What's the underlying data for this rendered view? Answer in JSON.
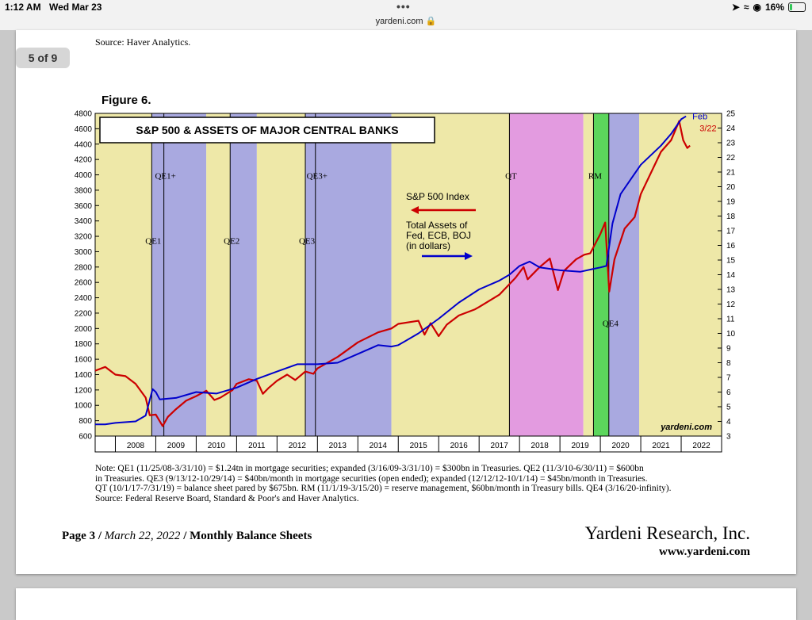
{
  "status_bar": {
    "time": "1:12 AM",
    "date": "Wed Mar 23",
    "url": "yardeni.com",
    "battery": "16%",
    "battery_level": 0.16
  },
  "viewer": {
    "page_counter": "5 of 9"
  },
  "document": {
    "source_top": "Source: Haver Analytics.",
    "figure_label": "Figure 6.",
    "notes": [
      "Note: QE1 (11/25/08-3/31/10) = $1.24tn in mortgage securities; expanded (3/16/09-3/31/10) = $300bn in Treasuries. QE2 (11/3/10-6/30/11) = $600bn",
      "in Treasuries. QE3 (9/13/12-10/29/14) = $40bn/month in mortgage securities (open ended); expanded (12/12/12-10/1/14) = $45bn/month in Treasuries.",
      "QT (10/1/17-7/31/19) = balance sheet pared by $675bn. RM (11/1/19-3/15/20) = reserve management, $60bn/month in Treasury bills. QE4 (3/16/20-infinity).",
      "Source: Federal Reserve Board, Standard & Poor's and Haver Analytics."
    ],
    "footer": {
      "page": "Page 3",
      "date": "March 22, 2022",
      "section": "Monthly Balance Sheets",
      "company": "Yardeni Research, Inc.",
      "website": "www.yardeni.com"
    }
  },
  "chart_data": {
    "type": "line",
    "title": "S&P 500 & ASSETS OF MAJOR CENTRAL BANKS",
    "watermark": "yardeni.com",
    "x_range": [
      2007.5,
      2023.0
    ],
    "x_tick_labels": [
      "2008",
      "2009",
      "2010",
      "2011",
      "2012",
      "2013",
      "2014",
      "2015",
      "2016",
      "2017",
      "2018",
      "2019",
      "2020",
      "2021",
      "2022"
    ],
    "y_left": {
      "range": [
        600,
        4800
      ],
      "ticks": [
        600,
        800,
        1000,
        1200,
        1400,
        1600,
        1800,
        2000,
        2200,
        2400,
        2600,
        2800,
        3000,
        3200,
        3400,
        3600,
        3800,
        4000,
        4200,
        4400,
        4600,
        4800
      ]
    },
    "y_right": {
      "range": [
        3,
        25
      ],
      "ticks": [
        3,
        4,
        5,
        6,
        7,
        8,
        9,
        10,
        11,
        12,
        13,
        14,
        15,
        16,
        17,
        18,
        19,
        20,
        21,
        22,
        23,
        24,
        25
      ]
    },
    "shaded_periods": [
      {
        "start": 2007.5,
        "end": 2008.9,
        "color": "#eee8a8"
      },
      {
        "start": 2008.9,
        "end": 2010.25,
        "color": "#a9a9e0"
      },
      {
        "start": 2010.25,
        "end": 2010.84,
        "color": "#eee8a8"
      },
      {
        "start": 2010.84,
        "end": 2011.5,
        "color": "#a9a9e0"
      },
      {
        "start": 2011.5,
        "end": 2012.7,
        "color": "#eee8a8"
      },
      {
        "start": 2012.7,
        "end": 2014.83,
        "color": "#a9a9e0"
      },
      {
        "start": 2014.83,
        "end": 2017.75,
        "color": "#eee8a8"
      },
      {
        "start": 2017.75,
        "end": 2019.58,
        "color": "#e39be0"
      },
      {
        "start": 2019.58,
        "end": 2019.83,
        "color": "#eee8a8"
      },
      {
        "start": 2019.83,
        "end": 2020.21,
        "color": "#5cd65c"
      },
      {
        "start": 2020.21,
        "end": 2020.96,
        "color": "#a9a9e0"
      },
      {
        "start": 2020.96,
        "end": 2023.0,
        "color": "#eee8a8"
      }
    ],
    "event_lines": [
      {
        "x": 2008.9,
        "label": "QE1",
        "label_y": 3100
      },
      {
        "x": 2009.2,
        "label": "QE1+",
        "label_y": 3950
      },
      {
        "x": 2010.84,
        "label": "QE2",
        "label_y": 3100
      },
      {
        "x": 2012.7,
        "label": "QE3",
        "label_y": 3100
      },
      {
        "x": 2012.95,
        "label": "QE3+",
        "label_y": 3950
      },
      {
        "x": 2017.75,
        "label": "QT",
        "label_y": 3950
      },
      {
        "x": 2019.83,
        "label": "RM",
        "label_y": 3950
      },
      {
        "x": 2020.21,
        "label": "QE4",
        "label_y": 2030
      }
    ],
    "series": [
      {
        "name": "S&P 500 Index",
        "axis": "left",
        "color": "#cc0000",
        "end_label": "3/22",
        "points": [
          [
            2007.5,
            1450
          ],
          [
            2007.75,
            1500
          ],
          [
            2008.0,
            1400
          ],
          [
            2008.25,
            1380
          ],
          [
            2008.5,
            1280
          ],
          [
            2008.75,
            1100
          ],
          [
            2008.85,
            870
          ],
          [
            2009.0,
            880
          ],
          [
            2009.17,
            730
          ],
          [
            2009.3,
            850
          ],
          [
            2009.5,
            950
          ],
          [
            2009.75,
            1060
          ],
          [
            2010.0,
            1120
          ],
          [
            2010.25,
            1190
          ],
          [
            2010.45,
            1070
          ],
          [
            2010.6,
            1100
          ],
          [
            2010.9,
            1200
          ],
          [
            2011.0,
            1280
          ],
          [
            2011.3,
            1340
          ],
          [
            2011.5,
            1320
          ],
          [
            2011.65,
            1150
          ],
          [
            2011.8,
            1230
          ],
          [
            2012.0,
            1320
          ],
          [
            2012.25,
            1400
          ],
          [
            2012.45,
            1330
          ],
          [
            2012.7,
            1440
          ],
          [
            2012.9,
            1410
          ],
          [
            2013.0,
            1480
          ],
          [
            2013.5,
            1630
          ],
          [
            2014.0,
            1820
          ],
          [
            2014.5,
            1950
          ],
          [
            2014.83,
            2000
          ],
          [
            2015.0,
            2060
          ],
          [
            2015.5,
            2100
          ],
          [
            2015.65,
            1920
          ],
          [
            2015.8,
            2070
          ],
          [
            2016.0,
            1900
          ],
          [
            2016.2,
            2050
          ],
          [
            2016.5,
            2170
          ],
          [
            2016.9,
            2250
          ],
          [
            2017.0,
            2280
          ],
          [
            2017.5,
            2440
          ],
          [
            2017.9,
            2660
          ],
          [
            2018.1,
            2800
          ],
          [
            2018.2,
            2640
          ],
          [
            2018.5,
            2800
          ],
          [
            2018.75,
            2910
          ],
          [
            2018.95,
            2500
          ],
          [
            2019.1,
            2750
          ],
          [
            2019.4,
            2900
          ],
          [
            2019.6,
            2960
          ],
          [
            2019.75,
            2980
          ],
          [
            2020.0,
            3230
          ],
          [
            2020.12,
            3380
          ],
          [
            2020.22,
            2480
          ],
          [
            2020.35,
            2900
          ],
          [
            2020.6,
            3300
          ],
          [
            2020.85,
            3450
          ],
          [
            2021.0,
            3750
          ],
          [
            2021.5,
            4300
          ],
          [
            2021.75,
            4450
          ],
          [
            2021.95,
            4700
          ],
          [
            2022.05,
            4450
          ],
          [
            2022.15,
            4350
          ],
          [
            2022.22,
            4380
          ]
        ]
      },
      {
        "name": "Total Assets of Fed, ECB, BOJ (in dollars)",
        "axis": "right",
        "color": "#0000cc",
        "end_label": "Feb",
        "points": [
          [
            2007.5,
            3.8
          ],
          [
            2007.75,
            3.8
          ],
          [
            2008.0,
            3.9
          ],
          [
            2008.5,
            4.0
          ],
          [
            2008.75,
            4.4
          ],
          [
            2008.92,
            6.2
          ],
          [
            2009.0,
            6.0
          ],
          [
            2009.1,
            5.5
          ],
          [
            2009.5,
            5.6
          ],
          [
            2010.0,
            6.0
          ],
          [
            2010.5,
            5.9
          ],
          [
            2011.0,
            6.3
          ],
          [
            2011.5,
            6.9
          ],
          [
            2012.0,
            7.4
          ],
          [
            2012.5,
            7.9
          ],
          [
            2013.0,
            7.9
          ],
          [
            2013.5,
            8.0
          ],
          [
            2014.0,
            8.6
          ],
          [
            2014.5,
            9.2
          ],
          [
            2014.83,
            9.1
          ],
          [
            2015.0,
            9.2
          ],
          [
            2015.5,
            10.0
          ],
          [
            2016.0,
            11.0
          ],
          [
            2016.5,
            12.1
          ],
          [
            2017.0,
            13.0
          ],
          [
            2017.5,
            13.6
          ],
          [
            2017.75,
            14.0
          ],
          [
            2018.0,
            14.6
          ],
          [
            2018.25,
            14.9
          ],
          [
            2018.5,
            14.5
          ],
          [
            2019.0,
            14.3
          ],
          [
            2019.5,
            14.2
          ],
          [
            2019.83,
            14.4
          ],
          [
            2020.0,
            14.5
          ],
          [
            2020.15,
            14.6
          ],
          [
            2020.3,
            17.5
          ],
          [
            2020.5,
            19.5
          ],
          [
            2020.75,
            20.5
          ],
          [
            2021.0,
            21.5
          ],
          [
            2021.5,
            22.8
          ],
          [
            2021.75,
            23.6
          ],
          [
            2022.0,
            24.6
          ],
          [
            2022.12,
            24.8
          ]
        ]
      }
    ],
    "legend": {
      "sp500": "S&P 500 Index",
      "assets_lines": [
        "Total Assets of",
        "Fed, ECB, BOJ",
        "(in dollars)"
      ]
    }
  }
}
